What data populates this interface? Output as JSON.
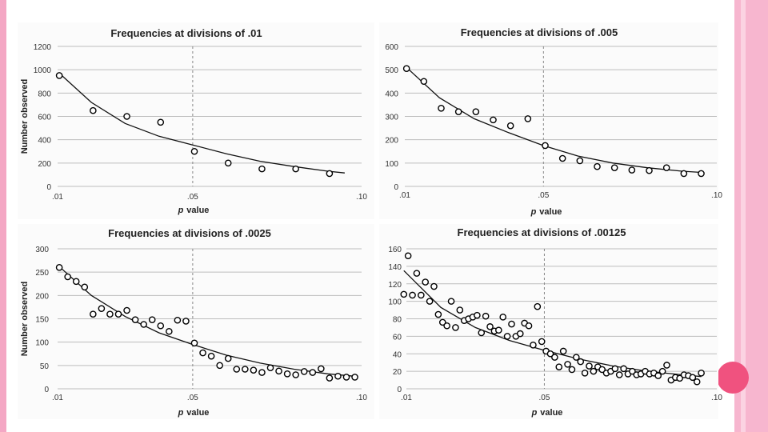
{
  "theme": {
    "left_stripe_color": "#f4a7c4",
    "right_stripe_outer": "#f7b6cf",
    "right_stripe_inner": "#fbd3e2",
    "accent_dot_color": "#f0527f",
    "panel_background": "#fbfbfb",
    "grid_color": "#bdbdbd",
    "marker_color": "#000000"
  },
  "chart_data": [
    {
      "type": "scatter",
      "title": "Frequencies at divisions of .01",
      "xlabel_prefix": "p",
      "xlabel_suffix": "value",
      "ylabel": "Number observed",
      "ylim": [
        0,
        1200
      ],
      "yticks": [
        0,
        200,
        400,
        600,
        800,
        1000,
        1200
      ],
      "xlim": [
        0.01,
        0.1
      ],
      "xticks": [
        0.01,
        0.05,
        0.1
      ],
      "xtick_labels": [
        ".01",
        ".05",
        ".10"
      ],
      "reference_line_x": 0.05,
      "grid": true,
      "points": [
        [
          0.0105,
          950
        ],
        [
          0.0205,
          650
        ],
        [
          0.0305,
          600
        ],
        [
          0.0405,
          550
        ],
        [
          0.0505,
          300
        ],
        [
          0.0605,
          200
        ],
        [
          0.0705,
          150
        ],
        [
          0.0805,
          150
        ],
        [
          0.0905,
          110
        ]
      ],
      "trend": [
        [
          0.0105,
          970
        ],
        [
          0.02,
          720
        ],
        [
          0.03,
          540
        ],
        [
          0.04,
          430
        ],
        [
          0.05,
          355
        ],
        [
          0.06,
          280
        ],
        [
          0.07,
          215
        ],
        [
          0.08,
          170
        ],
        [
          0.09,
          130
        ],
        [
          0.095,
          115
        ]
      ]
    },
    {
      "type": "scatter",
      "title": "Frequencies at divisions of .005",
      "xlabel_prefix": "p",
      "xlabel_suffix": "value",
      "ylabel": "",
      "ylim": [
        0,
        600
      ],
      "yticks": [
        0,
        100,
        200,
        300,
        400,
        500,
        600
      ],
      "xlim": [
        0.01,
        0.1
      ],
      "xticks": [
        0.01,
        0.05,
        0.1
      ],
      "xtick_labels": [
        ".01",
        ".05",
        ".10"
      ],
      "reference_line_x": 0.05,
      "grid": true,
      "points": [
        [
          0.0105,
          505
        ],
        [
          0.0155,
          450
        ],
        [
          0.0205,
          335
        ],
        [
          0.0255,
          320
        ],
        [
          0.0305,
          320
        ],
        [
          0.0355,
          285
        ],
        [
          0.0405,
          260
        ],
        [
          0.0455,
          290
        ],
        [
          0.0505,
          175
        ],
        [
          0.0555,
          120
        ],
        [
          0.0605,
          110
        ],
        [
          0.0655,
          85
        ],
        [
          0.0705,
          80
        ],
        [
          0.0755,
          70
        ],
        [
          0.0805,
          68
        ],
        [
          0.0855,
          80
        ],
        [
          0.0905,
          55
        ],
        [
          0.0955,
          55
        ]
      ],
      "trend": [
        [
          0.0105,
          510
        ],
        [
          0.02,
          380
        ],
        [
          0.03,
          290
        ],
        [
          0.04,
          230
        ],
        [
          0.05,
          175
        ],
        [
          0.06,
          130
        ],
        [
          0.07,
          100
        ],
        [
          0.08,
          80
        ],
        [
          0.09,
          65
        ],
        [
          0.0955,
          60
        ]
      ]
    },
    {
      "type": "scatter",
      "title": "Frequencies at divisions of .0025",
      "xlabel_prefix": "p",
      "xlabel_suffix": "value",
      "ylabel": "Number observed",
      "ylim": [
        0,
        300
      ],
      "yticks": [
        0,
        50,
        100,
        150,
        200,
        250,
        300
      ],
      "xlim": [
        0.01,
        0.1
      ],
      "xticks": [
        0.01,
        0.05,
        0.1
      ],
      "xtick_labels": [
        ".01",
        ".05",
        ".10"
      ],
      "reference_line_x": 0.05,
      "grid": true,
      "points": [
        [
          0.0105,
          260
        ],
        [
          0.013,
          240
        ],
        [
          0.0155,
          230
        ],
        [
          0.018,
          218
        ],
        [
          0.0205,
          160
        ],
        [
          0.023,
          172
        ],
        [
          0.0255,
          160
        ],
        [
          0.028,
          160
        ],
        [
          0.0305,
          168
        ],
        [
          0.033,
          148
        ],
        [
          0.0355,
          138
        ],
        [
          0.038,
          148
        ],
        [
          0.0405,
          135
        ],
        [
          0.043,
          123
        ],
        [
          0.0455,
          147
        ],
        [
          0.048,
          145
        ],
        [
          0.0505,
          98
        ],
        [
          0.053,
          77
        ],
        [
          0.0555,
          70
        ],
        [
          0.058,
          50
        ],
        [
          0.0605,
          65
        ],
        [
          0.063,
          42
        ],
        [
          0.0655,
          42
        ],
        [
          0.068,
          40
        ],
        [
          0.0705,
          35
        ],
        [
          0.073,
          45
        ],
        [
          0.0755,
          38
        ],
        [
          0.078,
          32
        ],
        [
          0.0805,
          30
        ],
        [
          0.083,
          37
        ],
        [
          0.0855,
          35
        ],
        [
          0.088,
          43
        ],
        [
          0.0905,
          23
        ],
        [
          0.093,
          27
        ],
        [
          0.0955,
          25
        ],
        [
          0.098,
          25
        ]
      ],
      "trend": [
        [
          0.0105,
          262
        ],
        [
          0.02,
          200
        ],
        [
          0.03,
          155
        ],
        [
          0.04,
          120
        ],
        [
          0.05,
          95
        ],
        [
          0.06,
          72
        ],
        [
          0.07,
          55
        ],
        [
          0.08,
          42
        ],
        [
          0.09,
          32
        ],
        [
          0.098,
          27
        ]
      ]
    },
    {
      "type": "scatter",
      "title": "Frequencies at divisions of .00125",
      "xlabel_prefix": "p",
      "xlabel_suffix": "value",
      "ylabel": "",
      "ylim": [
        0,
        160
      ],
      "yticks": [
        0,
        20,
        40,
        60,
        80,
        100,
        120,
        140,
        160
      ],
      "xlim": [
        0.01,
        0.1
      ],
      "xticks": [
        0.01,
        0.05,
        0.1
      ],
      "xtick_labels": [
        ".01",
        ".05",
        ".10"
      ],
      "reference_line_x": 0.05,
      "grid": true,
      "points": [
        [
          0.00925,
          108
        ],
        [
          0.0105,
          152
        ],
        [
          0.01175,
          107
        ],
        [
          0.013,
          132
        ],
        [
          0.01425,
          107
        ],
        [
          0.0155,
          122
        ],
        [
          0.01675,
          100
        ],
        [
          0.018,
          117
        ],
        [
          0.01925,
          85
        ],
        [
          0.0205,
          76
        ],
        [
          0.02175,
          72
        ],
        [
          0.023,
          100
        ],
        [
          0.02425,
          70
        ],
        [
          0.0255,
          90
        ],
        [
          0.02675,
          78
        ],
        [
          0.028,
          80
        ],
        [
          0.02925,
          82
        ],
        [
          0.0305,
          84
        ],
        [
          0.03175,
          64
        ],
        [
          0.033,
          83
        ],
        [
          0.03425,
          71
        ],
        [
          0.0355,
          66
        ],
        [
          0.03675,
          67
        ],
        [
          0.038,
          82
        ],
        [
          0.03925,
          60
        ],
        [
          0.0405,
          74
        ],
        [
          0.04175,
          60
        ],
        [
          0.043,
          63
        ],
        [
          0.04425,
          75
        ],
        [
          0.0455,
          72
        ],
        [
          0.04675,
          50
        ],
        [
          0.048,
          94
        ],
        [
          0.04925,
          54
        ],
        [
          0.0505,
          43
        ],
        [
          0.05175,
          40
        ],
        [
          0.053,
          36
        ],
        [
          0.05425,
          25
        ],
        [
          0.0555,
          43
        ],
        [
          0.05675,
          28
        ],
        [
          0.058,
          22
        ],
        [
          0.05925,
          36
        ],
        [
          0.0605,
          31
        ],
        [
          0.06175,
          18
        ],
        [
          0.063,
          26
        ],
        [
          0.06425,
          20
        ],
        [
          0.0655,
          25
        ],
        [
          0.06675,
          22
        ],
        [
          0.068,
          18
        ],
        [
          0.06925,
          20
        ],
        [
          0.0705,
          23
        ],
        [
          0.07175,
          16
        ],
        [
          0.073,
          23
        ],
        [
          0.07425,
          17
        ],
        [
          0.0755,
          20
        ],
        [
          0.07675,
          16
        ],
        [
          0.078,
          17
        ],
        [
          0.07925,
          20
        ],
        [
          0.0805,
          17
        ],
        [
          0.08175,
          18
        ],
        [
          0.083,
          15
        ],
        [
          0.08425,
          20
        ],
        [
          0.0855,
          27
        ],
        [
          0.08675,
          10
        ],
        [
          0.088,
          13
        ],
        [
          0.08925,
          12
        ],
        [
          0.0905,
          16
        ],
        [
          0.09175,
          15
        ],
        [
          0.093,
          13
        ],
        [
          0.09425,
          8
        ],
        [
          0.0955,
          18
        ]
      ],
      "trend": [
        [
          0.00925,
          135
        ],
        [
          0.02,
          93
        ],
        [
          0.03,
          70
        ],
        [
          0.04,
          55
        ],
        [
          0.05,
          44
        ],
        [
          0.06,
          34
        ],
        [
          0.07,
          26
        ],
        [
          0.08,
          20
        ],
        [
          0.09,
          16
        ],
        [
          0.0955,
          14
        ]
      ]
    }
  ]
}
